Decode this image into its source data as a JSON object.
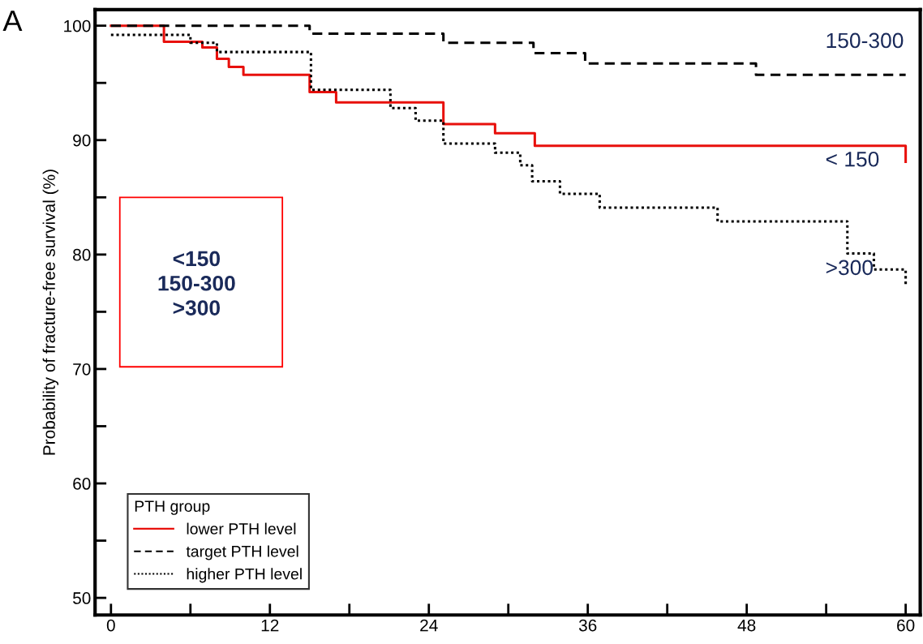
{
  "chart_data": {
    "type": "step",
    "ylabel": "Probability of fracture-free survival (%)",
    "legend_title": "PTH group",
    "legend": "bottom left",
    "xlim": [
      -1.2,
      61.1
    ],
    "ylim": [
      48.5,
      101.4
    ],
    "xticks": [
      0,
      {
        "value": 6,
        "label": null
      },
      12,
      {
        "value": 18,
        "label": null
      },
      24,
      {
        "value": 30,
        "label": null
      },
      36,
      {
        "value": 42,
        "label": null
      },
      48,
      {
        "value": 54,
        "label": null
      },
      60
    ],
    "yticks": [
      50,
      {
        "value": 55,
        "label": null
      },
      60,
      {
        "value": 65,
        "label": null
      },
      70,
      {
        "value": 75,
        "label": null
      },
      80,
      {
        "value": 85,
        "label": null
      },
      90,
      {
        "value": 95,
        "label": null
      },
      100
    ],
    "grid": false,
    "series": [
      {
        "name": "lower PTH level",
        "color": "#e8100c",
        "line_style": "solid",
        "x": [
          0,
          4.0,
          6.9,
          8.0,
          8.9,
          10.0,
          15.0,
          17.0,
          25.1,
          29.0,
          32.0,
          60,
          60
        ],
        "values": [
          100,
          98.6,
          98.1,
          97.1,
          96.4,
          95.7,
          94.2,
          93.3,
          91.4,
          90.6,
          89.5,
          89.5,
          88.1
        ]
      },
      {
        "name": "target PTH level",
        "color": "#000000",
        "line_style": "dashed",
        "x": [
          0,
          15.0,
          25.1,
          31.9,
          35.8,
          48.7,
          60
        ],
        "values": [
          100,
          99.3,
          98.5,
          97.6,
          96.7,
          95.7,
          95.7
        ]
      },
      {
        "name": "higher PTH level",
        "color": "#000000",
        "line_style": "dotted",
        "x": [
          0,
          6.0,
          8.0,
          15.1,
          21.1,
          23.0,
          25.1,
          29.0,
          30.9,
          31.8,
          33.9,
          36.9,
          45.8,
          55.6,
          57.6,
          60,
          60
        ],
        "values": [
          99.2,
          98.5,
          97.7,
          94.4,
          92.8,
          91.7,
          89.7,
          88.9,
          87.8,
          86.4,
          85.3,
          84.1,
          82.9,
          80.1,
          78.7,
          78.7,
          77.3
        ]
      }
    ],
    "annotations": [
      "A",
      "150-300",
      "< 150",
      ">300",
      "<150\n150-300\n>300"
    ]
  }
}
